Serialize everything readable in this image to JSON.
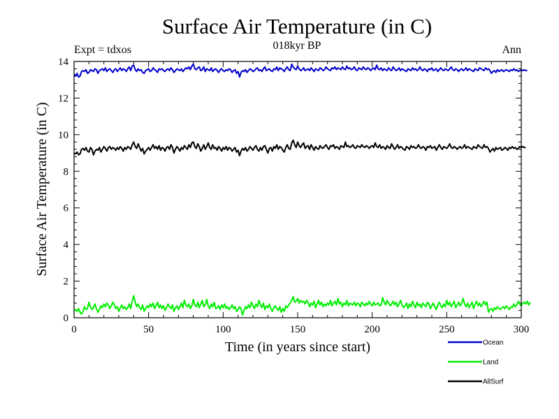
{
  "chart_data": {
    "type": "line",
    "title": "Surface Air Temperature (in C)",
    "subtitle": "018kyr BP",
    "left_note": "Expt = tdxos",
    "right_note": "Ann",
    "xlabel": "Time (in years since start)",
    "ylabel": "Surface Air Temperature (in C)",
    "xlim": [
      0,
      300
    ],
    "ylim": [
      0,
      14
    ],
    "xticks": [
      0,
      50,
      100,
      150,
      200,
      250,
      300
    ],
    "yticks": [
      0,
      2,
      4,
      6,
      8,
      10,
      12,
      14
    ],
    "x_step": 1,
    "grid": false,
    "legend_position": "bottom-right outside",
    "series": [
      {
        "name": "Ocean",
        "color": "#0000cc",
        "values": [
          13.3,
          13.2,
          13.35,
          13.15,
          13.2,
          13.45,
          13.5,
          13.45,
          13.55,
          13.35,
          13.4,
          13.55,
          13.5,
          13.45,
          13.6,
          13.55,
          13.35,
          13.5,
          13.55,
          13.6,
          13.5,
          13.65,
          13.45,
          13.55,
          13.6,
          13.5,
          13.4,
          13.55,
          13.6,
          13.45,
          13.55,
          13.65,
          13.5,
          13.6,
          13.55,
          13.45,
          13.6,
          13.7,
          13.5,
          13.75,
          13.8,
          13.55,
          13.45,
          13.6,
          13.5,
          13.55,
          13.4,
          13.35,
          13.5,
          13.55,
          13.6,
          13.45,
          13.5,
          13.65,
          13.55,
          13.5,
          13.4,
          13.6,
          13.55,
          13.6,
          13.5,
          13.45,
          13.55,
          13.6,
          13.5,
          13.65,
          13.55,
          13.4,
          13.5,
          13.6,
          13.55,
          13.5,
          13.6,
          13.45,
          13.55,
          13.65,
          13.6,
          13.7,
          13.55,
          13.75,
          13.85,
          13.6,
          13.55,
          13.65,
          13.7,
          13.5,
          13.55,
          13.7,
          13.45,
          13.6,
          13.55,
          13.5,
          13.65,
          13.45,
          13.55,
          13.6,
          13.5,
          13.4,
          13.55,
          13.6,
          13.5,
          13.45,
          13.55,
          13.5,
          13.6,
          13.55,
          13.4,
          13.5,
          13.55,
          13.35,
          13.45,
          13.15,
          13.4,
          13.5,
          13.45,
          13.55,
          13.4,
          13.5,
          13.6,
          13.55,
          13.45,
          13.5,
          13.6,
          13.65,
          13.5,
          13.55,
          13.45,
          13.6,
          13.7,
          13.5,
          13.55,
          13.6,
          13.5,
          13.45,
          13.6,
          13.55,
          13.7,
          13.5,
          13.65,
          13.6,
          13.55,
          13.45,
          13.6,
          13.7,
          13.55,
          13.5,
          13.85,
          13.7,
          13.6,
          13.55,
          13.75,
          13.6,
          13.5,
          13.55,
          13.65,
          13.5,
          13.55,
          13.6,
          13.5,
          13.65,
          13.55,
          13.45,
          13.6,
          13.55,
          13.5,
          13.65,
          13.6,
          13.5,
          13.55,
          13.7,
          13.6,
          13.55,
          13.5,
          13.65,
          13.6,
          13.7,
          13.55,
          13.65,
          13.6,
          13.55,
          13.7,
          13.6,
          13.55,
          13.75,
          13.6,
          13.65,
          13.55,
          13.6,
          13.7,
          13.55,
          13.5,
          13.65,
          13.6,
          13.55,
          13.7,
          13.6,
          13.55,
          13.65,
          13.6,
          13.5,
          13.6,
          13.65,
          13.55,
          13.8,
          13.6,
          13.55,
          13.65,
          13.5,
          13.6,
          13.55,
          13.5,
          13.65,
          13.55,
          13.5,
          13.7,
          13.6,
          13.5,
          13.55,
          13.65,
          13.5,
          13.6,
          13.55,
          13.5,
          13.45,
          13.6,
          13.55,
          13.5,
          13.65,
          13.55,
          13.6,
          13.5,
          13.55,
          13.7,
          13.55,
          13.5,
          13.6,
          13.55,
          13.45,
          13.6,
          13.55,
          13.65,
          13.5,
          13.55,
          13.6,
          13.45,
          13.55,
          13.65,
          13.55,
          13.5,
          13.6,
          13.55,
          13.5,
          13.6,
          13.7,
          13.55,
          13.5,
          13.6,
          13.55,
          13.45,
          13.55,
          13.6,
          13.5,
          13.55,
          13.65,
          13.5,
          13.6,
          13.55,
          13.5,
          13.45,
          13.6,
          13.55,
          13.5,
          13.65,
          13.6,
          13.55,
          13.5,
          13.65,
          13.55,
          13.6,
          13.5,
          13.35,
          13.45,
          13.5,
          13.4,
          13.55,
          13.45,
          13.5,
          13.55,
          13.45,
          13.5,
          13.55,
          13.5,
          13.45,
          13.55,
          13.5,
          13.6,
          13.5,
          13.55,
          13.45,
          13.5,
          13.55,
          13.5,
          13.55,
          13.5,
          13.5
        ]
      },
      {
        "name": "Land",
        "color": "#00ee00",
        "values": [
          0.4,
          0.45,
          0.35,
          0.5,
          0.3,
          0.2,
          0.35,
          0.6,
          0.45,
          0.5,
          0.85,
          0.6,
          0.45,
          0.55,
          0.75,
          0.5,
          0.3,
          0.45,
          0.65,
          0.55,
          0.75,
          0.6,
          0.8,
          0.7,
          0.5,
          0.65,
          0.85,
          0.7,
          0.5,
          0.6,
          0.35,
          0.55,
          0.7,
          0.5,
          0.6,
          0.45,
          0.55,
          0.75,
          0.5,
          0.9,
          1.2,
          0.85,
          0.6,
          0.75,
          0.55,
          0.45,
          0.7,
          0.35,
          0.5,
          0.65,
          0.55,
          0.75,
          0.6,
          0.8,
          0.5,
          0.65,
          0.85,
          0.55,
          0.7,
          0.5,
          0.65,
          0.4,
          0.55,
          0.75,
          0.6,
          0.5,
          0.7,
          0.35,
          0.55,
          0.65,
          0.45,
          0.6,
          0.8,
          0.55,
          0.95,
          0.7,
          0.6,
          0.75,
          0.5,
          0.65,
          1.0,
          0.7,
          0.6,
          0.85,
          0.55,
          0.75,
          0.95,
          0.6,
          0.7,
          1.0,
          0.65,
          0.5,
          0.75,
          0.6,
          0.85,
          0.5,
          0.55,
          0.65,
          0.45,
          0.7,
          0.55,
          0.75,
          0.5,
          0.6,
          0.45,
          0.55,
          0.7,
          0.5,
          0.6,
          0.35,
          0.45,
          0.6,
          0.5,
          0.15,
          0.4,
          0.6,
          0.5,
          0.7,
          0.55,
          0.85,
          0.65,
          0.5,
          0.75,
          0.6,
          0.95,
          0.7,
          0.55,
          0.8,
          0.45,
          0.65,
          0.55,
          0.75,
          0.5,
          0.35,
          0.55,
          0.65,
          0.5,
          0.4,
          0.6,
          0.3,
          0.5,
          0.35,
          0.65,
          0.55,
          0.7,
          0.8,
          0.95,
          1.15,
          0.85,
          0.9,
          1.05,
          0.8,
          0.95,
          0.85,
          0.9,
          0.75,
          0.95,
          0.85,
          0.6,
          0.8,
          0.7,
          0.9,
          0.55,
          0.75,
          0.95,
          0.7,
          0.85,
          0.6,
          0.75,
          0.65,
          0.8,
          0.7,
          0.95,
          0.65,
          0.8,
          0.9,
          0.7,
          1.05,
          0.75,
          0.85,
          0.6,
          0.8,
          0.7,
          0.95,
          0.65,
          0.8,
          0.75,
          0.7,
          0.85,
          0.65,
          0.8,
          0.75,
          0.6,
          0.85,
          0.75,
          0.65,
          0.8,
          0.7,
          0.9,
          0.75,
          0.65,
          0.85,
          0.7,
          0.75,
          0.8,
          0.65,
          0.7,
          1.1,
          0.85,
          0.7,
          0.95,
          0.8,
          0.65,
          0.75,
          0.9,
          0.7,
          0.85,
          0.6,
          0.75,
          0.95,
          0.7,
          0.55,
          0.65,
          0.8,
          0.5,
          0.75,
          0.6,
          0.9,
          0.7,
          0.55,
          0.85,
          0.65,
          0.75,
          0.55,
          0.8,
          0.7,
          0.6,
          0.85,
          0.75,
          0.5,
          0.65,
          0.8,
          0.6,
          0.45,
          0.7,
          0.85,
          0.65,
          0.55,
          0.75,
          0.6,
          0.95,
          0.7,
          0.85,
          0.6,
          0.75,
          0.9,
          0.55,
          0.7,
          0.85,
          0.65,
          0.8,
          1.05,
          0.75,
          0.6,
          0.8,
          0.55,
          0.7,
          0.85,
          0.5,
          0.75,
          0.9,
          0.65,
          0.8,
          0.6,
          0.75,
          0.9,
          0.7,
          0.85,
          0.3,
          0.45,
          0.5,
          0.35,
          0.55,
          0.45,
          0.6,
          0.5,
          0.45,
          0.55,
          0.6,
          0.5,
          0.65,
          0.55,
          0.45,
          0.6,
          0.55,
          0.75,
          0.6,
          0.7,
          0.9,
          0.75,
          0.65,
          0.8,
          0.85,
          0.75,
          0.9,
          0.7,
          0.85
        ]
      },
      {
        "name": "AllSurf",
        "color": "#000000",
        "values": [
          9.0,
          8.95,
          9.05,
          8.9,
          8.95,
          9.2,
          9.25,
          9.15,
          9.3,
          9.1,
          9.05,
          9.3,
          9.2,
          8.9,
          9.1,
          9.2,
          9.15,
          9.3,
          9.05,
          9.2,
          9.35,
          9.25,
          9.1,
          9.3,
          9.35,
          9.2,
          9.3,
          9.25,
          9.15,
          9.3,
          9.2,
          9.35,
          9.25,
          9.1,
          9.3,
          9.2,
          9.35,
          9.3,
          9.2,
          9.45,
          9.6,
          9.35,
          9.25,
          9.5,
          9.3,
          9.1,
          9.25,
          8.95,
          9.1,
          9.2,
          9.3,
          9.15,
          9.3,
          9.45,
          9.25,
          9.35,
          9.2,
          9.4,
          9.15,
          9.3,
          9.25,
          9.1,
          9.3,
          9.35,
          9.2,
          9.45,
          9.3,
          9.0,
          9.2,
          9.35,
          9.25,
          9.1,
          9.3,
          9.2,
          9.4,
          9.3,
          9.2,
          9.45,
          9.3,
          9.55,
          9.6,
          9.35,
          9.25,
          9.5,
          9.35,
          9.1,
          9.25,
          9.45,
          9.2,
          9.35,
          9.55,
          9.3,
          9.2,
          9.45,
          9.25,
          9.3,
          9.15,
          9.35,
          9.25,
          9.1,
          9.3,
          9.2,
          9.35,
          9.15,
          9.3,
          9.25,
          9.1,
          9.2,
          9.3,
          9.05,
          9.15,
          8.85,
          9.1,
          9.25,
          9.15,
          9.3,
          9.1,
          9.2,
          9.35,
          9.25,
          9.15,
          9.3,
          9.4,
          9.2,
          9.1,
          9.3,
          9.15,
          9.35,
          9.4,
          9.2,
          9.0,
          9.25,
          9.3,
          9.1,
          9.35,
          9.25,
          9.45,
          9.2,
          9.35,
          9.3,
          9.15,
          9.05,
          9.3,
          9.45,
          9.25,
          9.2,
          9.55,
          9.7,
          9.45,
          9.3,
          9.6,
          9.4,
          9.3,
          9.45,
          9.55,
          9.25,
          9.35,
          9.4,
          9.2,
          9.45,
          9.3,
          9.15,
          9.35,
          9.25,
          9.2,
          9.4,
          9.3,
          9.25,
          9.35,
          9.45,
          9.3,
          9.2,
          9.4,
          9.35,
          9.45,
          9.25,
          9.35,
          9.3,
          9.2,
          9.4,
          9.35,
          9.3,
          9.6,
          9.35,
          9.4,
          9.3,
          9.35,
          9.45,
          9.3,
          9.25,
          9.4,
          9.35,
          9.3,
          9.45,
          9.35,
          9.3,
          9.4,
          9.35,
          9.25,
          9.35,
          9.4,
          9.3,
          9.55,
          9.35,
          9.3,
          9.45,
          9.25,
          9.35,
          9.3,
          9.2,
          9.4,
          9.3,
          9.25,
          9.5,
          9.35,
          9.2,
          9.3,
          9.45,
          9.25,
          9.35,
          9.3,
          9.2,
          9.15,
          9.35,
          9.3,
          9.2,
          9.4,
          9.3,
          9.35,
          9.25,
          9.3,
          9.45,
          9.3,
          9.25,
          9.35,
          9.3,
          9.15,
          9.35,
          9.3,
          9.4,
          9.25,
          9.3,
          9.35,
          9.15,
          9.3,
          9.45,
          9.3,
          9.2,
          9.35,
          9.3,
          9.25,
          9.35,
          9.5,
          9.3,
          9.25,
          9.35,
          9.3,
          9.2,
          9.3,
          9.35,
          9.25,
          9.3,
          9.45,
          9.25,
          9.35,
          9.3,
          9.25,
          9.2,
          9.35,
          9.3,
          9.25,
          9.45,
          9.35,
          9.3,
          9.25,
          9.45,
          9.3,
          9.35,
          9.25,
          9.05,
          9.15,
          9.25,
          9.1,
          9.3,
          9.2,
          9.25,
          9.3,
          9.15,
          9.2,
          9.3,
          9.25,
          9.15,
          9.3,
          9.25,
          9.35,
          9.25,
          9.3,
          9.2,
          9.25,
          9.35,
          9.3,
          9.35,
          9.3,
          9.3
        ]
      }
    ]
  }
}
